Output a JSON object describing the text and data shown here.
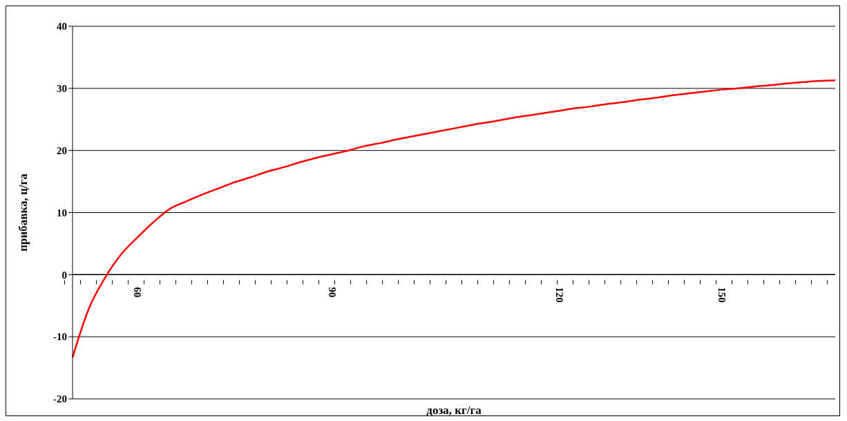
{
  "chart_data": {
    "type": "line",
    "xlabel": "доза, кг/га",
    "ylabel": "прибавка, ц/га",
    "categories": [
      null,
      null,
      null,
      null,
      "60",
      null,
      null,
      null,
      null,
      null,
      null,
      null,
      null,
      null,
      null,
      null,
      "90",
      null,
      null,
      null,
      null,
      null,
      null,
      null,
      null,
      null,
      null,
      null,
      null,
      null,
      "120",
      null,
      null,
      null,
      null,
      null,
      null,
      null,
      null,
      null,
      "150",
      null,
      null,
      null,
      null,
      null,
      null,
      null
    ],
    "series": [
      {
        "color": "#ff0000",
        "values": [
          -13.3,
          -5.5,
          -0.5,
          3.3,
          6.0,
          8.5,
          10.6,
          11.8,
          12.9,
          13.9,
          14.9,
          15.7,
          16.6,
          17.3,
          18.1,
          18.8,
          19.4,
          20.0,
          20.7,
          21.2,
          21.8,
          22.3,
          22.8,
          23.3,
          23.8,
          24.3,
          24.7,
          25.2,
          25.6,
          26.0,
          26.4,
          26.8,
          27.1,
          27.5,
          27.8,
          28.2,
          28.5,
          28.9,
          29.2,
          29.5,
          29.8,
          30.0,
          30.3,
          30.5,
          30.8,
          31.0,
          31.2,
          31.3
        ]
      }
    ],
    "ylim": [
      -20,
      40
    ],
    "yticks": [
      -20,
      -10,
      0,
      10,
      20,
      30,
      40
    ],
    "grid": "y",
    "legend": false,
    "marker": "none",
    "line_style": "solid"
  }
}
